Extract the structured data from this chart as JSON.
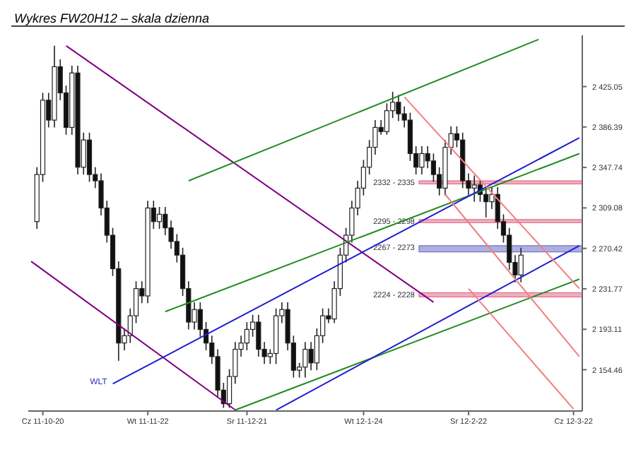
{
  "chart_data": {
    "type": "candlestick",
    "title": "Wykres FW20H12 – skala dzienna",
    "categories": [
      null,
      null,
      "Cz 11-10-20",
      null,
      null,
      null,
      null,
      null,
      null,
      null,
      null,
      null,
      null,
      null,
      null,
      null,
      null,
      null,
      null,
      null,
      "Wt 11-11-22",
      null,
      null,
      null,
      null,
      null,
      null,
      null,
      null,
      null,
      null,
      null,
      null,
      null,
      null,
      null,
      null,
      "Sr 11-12-21",
      null,
      null,
      null,
      null,
      null,
      null,
      null,
      null,
      null,
      null,
      null,
      null,
      null,
      null,
      null,
      null,
      null,
      null,
      null,
      "Wt 12-1-24",
      null,
      null,
      null,
      null,
      null,
      null,
      null,
      null,
      null,
      null,
      null,
      null,
      null,
      null,
      null,
      null,
      null,
      "Sr 12-2-22",
      null,
      null,
      null,
      null,
      null,
      null,
      null,
      null,
      null,
      null,
      null,
      null,
      null,
      null,
      null,
      null,
      null,
      "Cz 12-3-22",
      null
    ],
    "ohlc": [
      null,
      [
        2296,
        2348,
        2289,
        2341
      ],
      [
        2341,
        2419,
        2334,
        2412
      ],
      [
        2412,
        2419,
        2386,
        2393
      ],
      [
        2393,
        2464,
        2386,
        2444
      ],
      [
        2444,
        2451,
        2412,
        2419
      ],
      [
        2419,
        2426,
        2379,
        2386
      ],
      [
        2386,
        2445,
        2379,
        2438
      ],
      [
        2438,
        2445,
        2341,
        2348
      ],
      [
        2348,
        2381,
        2341,
        2374
      ],
      [
        2374,
        2381,
        2334,
        2341
      ],
      [
        2341,
        2348,
        2328,
        2335
      ],
      [
        2335,
        2342,
        2302,
        2309
      ],
      [
        2309,
        2316,
        2276,
        2283
      ],
      [
        2283,
        2290,
        2244,
        2251
      ],
      [
        2251,
        2258,
        2163,
        2180
      ],
      [
        2180,
        2194,
        2173,
        2187
      ],
      [
        2187,
        2213,
        2180,
        2206
      ],
      [
        2206,
        2239,
        2199,
        2232
      ],
      [
        2232,
        2239,
        2218,
        2225
      ],
      [
        2225,
        2316,
        2218,
        2309
      ],
      [
        2309,
        2316,
        2289,
        2296
      ],
      [
        2296,
        2310,
        2289,
        2303
      ],
      [
        2303,
        2310,
        2283,
        2290
      ],
      [
        2290,
        2297,
        2270,
        2277
      ],
      [
        2277,
        2284,
        2257,
        2264
      ],
      [
        2264,
        2271,
        2225,
        2232
      ],
      [
        2232,
        2239,
        2193,
        2200
      ],
      [
        2200,
        2219,
        2193,
        2212
      ],
      [
        2212,
        2219,
        2186,
        2193
      ],
      [
        2193,
        2200,
        2173,
        2180
      ],
      [
        2180,
        2187,
        2160,
        2167
      ],
      [
        2167,
        2174,
        2128,
        2135
      ],
      [
        2135,
        2142,
        2118,
        2122
      ],
      [
        2122,
        2155,
        2118,
        2148
      ],
      [
        2148,
        2181,
        2141,
        2174
      ],
      [
        2174,
        2187,
        2167,
        2180
      ],
      [
        2180,
        2200,
        2173,
        2193
      ],
      [
        2193,
        2207,
        2186,
        2200
      ],
      [
        2200,
        2207,
        2167,
        2174
      ],
      [
        2174,
        2181,
        2160,
        2167
      ],
      [
        2167,
        2174,
        2160,
        2170
      ],
      [
        2170,
        2213,
        2160,
        2206
      ],
      [
        2206,
        2219,
        2199,
        2212
      ],
      [
        2212,
        2219,
        2173,
        2180
      ],
      [
        2180,
        2187,
        2147,
        2154
      ],
      [
        2154,
        2161,
        2147,
        2157
      ],
      [
        2157,
        2181,
        2147,
        2174
      ],
      [
        2174,
        2181,
        2154,
        2161
      ],
      [
        2161,
        2194,
        2154,
        2187
      ],
      [
        2187,
        2213,
        2180,
        2206
      ],
      [
        2206,
        2213,
        2199,
        2203
      ],
      [
        2203,
        2239,
        2199,
        2232
      ],
      [
        2232,
        2271,
        2225,
        2264
      ],
      [
        2264,
        2290,
        2257,
        2283
      ],
      [
        2283,
        2316,
        2276,
        2309
      ],
      [
        2309,
        2335,
        2302,
        2328
      ],
      [
        2328,
        2355,
        2321,
        2348
      ],
      [
        2348,
        2374,
        2341,
        2367
      ],
      [
        2367,
        2393,
        2360,
        2386
      ],
      [
        2386,
        2393,
        2379,
        2382
      ],
      [
        2382,
        2409,
        2379,
        2402
      ],
      [
        2402,
        2420,
        2395,
        2410
      ],
      [
        2410,
        2417,
        2392,
        2399
      ],
      [
        2399,
        2406,
        2386,
        2393
      ],
      [
        2393,
        2400,
        2354,
        2361
      ],
      [
        2361,
        2368,
        2341,
        2348
      ],
      [
        2348,
        2368,
        2341,
        2361
      ],
      [
        2361,
        2368,
        2347,
        2354
      ],
      [
        2354,
        2361,
        2334,
        2341
      ],
      [
        2341,
        2348,
        2321,
        2328
      ],
      [
        2328,
        2374,
        2321,
        2367
      ],
      [
        2367,
        2387,
        2360,
        2380
      ],
      [
        2380,
        2387,
        2367,
        2374
      ],
      [
        2374,
        2381,
        2328,
        2335
      ],
      [
        2335,
        2342,
        2321,
        2328
      ],
      [
        2328,
        2340,
        2315,
        2331
      ],
      [
        2331,
        2335,
        2315,
        2322
      ],
      [
        2322,
        2329,
        2300,
        2315
      ],
      [
        2315,
        2329,
        2308,
        2322
      ],
      [
        2322,
        2329,
        2289,
        2296
      ],
      [
        2296,
        2303,
        2276,
        2283
      ],
      [
        2283,
        2290,
        2250,
        2257
      ],
      [
        2257,
        2264,
        2238,
        2245
      ],
      [
        2245,
        2271,
        2238,
        2264
      ],
      null,
      null,
      null,
      null,
      null,
      null,
      null,
      null,
      null,
      null
    ],
    "series": [
      {
        "type": "line",
        "color": "#800080",
        "values": [
          null,
          null,
          null,
          null,
          null,
          null,
          2464,
          null,
          null,
          null,
          null,
          null,
          null,
          null,
          null,
          null,
          null,
          null,
          null,
          null,
          null,
          null,
          null,
          null,
          null,
          null,
          null,
          null,
          null,
          null,
          null,
          null,
          null,
          null,
          null,
          null,
          null,
          null,
          null,
          null,
          null,
          null,
          null,
          null,
          null,
          null,
          null,
          null,
          null,
          null,
          null,
          null,
          null,
          null,
          null,
          null,
          null,
          null,
          null,
          null,
          null,
          null,
          null,
          null,
          null,
          null,
          null,
          null,
          null,
          2219,
          null,
          null,
          null,
          null,
          null,
          null,
          null,
          null,
          null,
          null,
          null,
          null,
          null,
          null,
          null,
          null,
          null,
          null,
          null,
          null,
          null,
          null,
          null,
          null,
          null
        ]
      },
      {
        "type": "line",
        "color": "#800080",
        "values": [
          2258,
          null,
          null,
          null,
          null,
          null,
          null,
          null,
          null,
          null,
          null,
          null,
          null,
          null,
          null,
          null,
          null,
          null,
          null,
          null,
          null,
          null,
          null,
          null,
          null,
          null,
          null,
          null,
          null,
          null,
          null,
          null,
          null,
          null,
          null,
          2116,
          null,
          null,
          null,
          null,
          null,
          null,
          null,
          null,
          null,
          null,
          null,
          null,
          null,
          null,
          null,
          null,
          null,
          null,
          null,
          null,
          null,
          null,
          null,
          null,
          null,
          null,
          null,
          null,
          null,
          null,
          null,
          null,
          null,
          null,
          null,
          null,
          null,
          null,
          null,
          null,
          null,
          null,
          null,
          null,
          null,
          null,
          null,
          null,
          null,
          null,
          null,
          null,
          null,
          null,
          null,
          null,
          null,
          null,
          null
        ]
      },
      {
        "type": "line",
        "color": "#228b22",
        "values": [
          null,
          null,
          null,
          null,
          null,
          null,
          null,
          null,
          null,
          null,
          null,
          null,
          null,
          null,
          null,
          null,
          null,
          null,
          null,
          null,
          null,
          null,
          null,
          null,
          null,
          null,
          null,
          2335,
          null,
          null,
          null,
          null,
          null,
          null,
          null,
          null,
          null,
          null,
          null,
          null,
          null,
          null,
          null,
          null,
          null,
          null,
          null,
          null,
          null,
          null,
          null,
          null,
          null,
          null,
          null,
          null,
          null,
          null,
          null,
          null,
          null,
          null,
          null,
          null,
          null,
          null,
          null,
          null,
          null,
          null,
          null,
          null,
          null,
          null,
          null,
          null,
          null,
          null,
          null,
          null,
          null,
          null,
          null,
          null,
          null,
          null,
          null,
          2470,
          null,
          null,
          null,
          null,
          null,
          null,
          null
        ]
      },
      {
        "type": "line",
        "color": "#228b22",
        "values": [
          null,
          null,
          null,
          null,
          null,
          null,
          null,
          null,
          null,
          null,
          null,
          null,
          null,
          null,
          null,
          null,
          null,
          null,
          null,
          null,
          null,
          null,
          null,
          2210,
          null,
          null,
          null,
          null,
          null,
          null,
          null,
          null,
          null,
          null,
          null,
          null,
          null,
          null,
          null,
          null,
          null,
          null,
          null,
          null,
          null,
          null,
          null,
          null,
          null,
          null,
          null,
          null,
          null,
          null,
          null,
          null,
          null,
          null,
          null,
          null,
          null,
          null,
          null,
          null,
          null,
          null,
          null,
          null,
          null,
          null,
          null,
          null,
          null,
          null,
          null,
          null,
          null,
          null,
          null,
          null,
          null,
          null,
          null,
          null,
          null,
          null,
          null,
          null,
          null,
          null,
          null,
          null,
          null,
          null,
          2361
        ]
      },
      {
        "type": "line",
        "color": "#228b22",
        "values": [
          null,
          null,
          null,
          null,
          null,
          null,
          null,
          null,
          null,
          null,
          null,
          null,
          null,
          null,
          null,
          null,
          null,
          null,
          null,
          null,
          null,
          null,
          null,
          null,
          null,
          null,
          null,
          null,
          null,
          null,
          null,
          null,
          null,
          null,
          null,
          2116,
          null,
          null,
          null,
          null,
          null,
          null,
          null,
          null,
          null,
          null,
          null,
          null,
          null,
          null,
          null,
          null,
          null,
          null,
          null,
          null,
          null,
          null,
          null,
          null,
          null,
          null,
          null,
          null,
          null,
          null,
          null,
          null,
          null,
          null,
          null,
          null,
          null,
          null,
          null,
          null,
          null,
          null,
          null,
          null,
          null,
          null,
          null,
          null,
          null,
          null,
          null,
          null,
          null,
          null,
          null,
          null,
          null,
          null,
          2241
        ]
      },
      {
        "type": "line",
        "color": "#1f1fd0",
        "values": [
          null,
          null,
          null,
          null,
          null,
          null,
          null,
          null,
          null,
          null,
          null,
          null,
          null,
          null,
          2141,
          null,
          null,
          null,
          null,
          null,
          null,
          null,
          null,
          null,
          null,
          null,
          null,
          null,
          null,
          null,
          null,
          null,
          null,
          null,
          null,
          null,
          null,
          null,
          null,
          null,
          null,
          null,
          null,
          null,
          null,
          null,
          null,
          null,
          null,
          null,
          null,
          null,
          null,
          null,
          null,
          null,
          null,
          null,
          null,
          null,
          null,
          null,
          null,
          null,
          null,
          null,
          null,
          null,
          null,
          null,
          null,
          null,
          null,
          null,
          null,
          null,
          null,
          null,
          null,
          null,
          null,
          null,
          null,
          null,
          null,
          null,
          null,
          null,
          null,
          null,
          null,
          null,
          null,
          null,
          2376
        ]
      },
      {
        "type": "line",
        "color": "#1f1fd0",
        "values": [
          null,
          null,
          null,
          null,
          null,
          null,
          null,
          null,
          null,
          null,
          null,
          null,
          null,
          null,
          null,
          null,
          null,
          null,
          null,
          null,
          null,
          null,
          null,
          null,
          null,
          null,
          null,
          null,
          null,
          null,
          null,
          null,
          null,
          null,
          null,
          null,
          null,
          null,
          null,
          null,
          null,
          null,
          2116,
          null,
          null,
          null,
          null,
          null,
          null,
          null,
          null,
          null,
          null,
          null,
          null,
          null,
          null,
          null,
          null,
          null,
          null,
          null,
          null,
          null,
          null,
          null,
          null,
          null,
          null,
          null,
          null,
          null,
          null,
          null,
          null,
          null,
          null,
          null,
          null,
          null,
          null,
          null,
          null,
          null,
          null,
          null,
          null,
          null,
          null,
          null,
          null,
          null,
          null,
          null,
          2273
        ]
      },
      {
        "type": "line",
        "color": "#f08080",
        "values": [
          null,
          null,
          null,
          null,
          null,
          null,
          null,
          null,
          null,
          null,
          null,
          null,
          null,
          null,
          null,
          null,
          null,
          null,
          null,
          null,
          null,
          null,
          null,
          null,
          null,
          null,
          null,
          null,
          null,
          null,
          null,
          null,
          null,
          null,
          null,
          null,
          null,
          null,
          null,
          null,
          null,
          null,
          null,
          null,
          null,
          null,
          null,
          null,
          null,
          null,
          null,
          null,
          null,
          null,
          null,
          null,
          null,
          null,
          null,
          null,
          null,
          null,
          null,
          null,
          2415,
          null,
          null,
          null,
          null,
          null,
          null,
          null,
          null,
          null,
          null,
          null,
          null,
          null,
          null,
          null,
          null,
          null,
          null,
          null,
          null,
          null,
          null,
          null,
          null,
          null,
          null,
          null,
          null,
          null,
          2232
        ]
      },
      {
        "type": "line",
        "color": "#f08080",
        "values": [
          null,
          null,
          null,
          null,
          null,
          null,
          null,
          null,
          null,
          null,
          null,
          null,
          null,
          null,
          null,
          null,
          null,
          null,
          null,
          null,
          null,
          null,
          null,
          null,
          null,
          null,
          null,
          null,
          null,
          null,
          null,
          null,
          null,
          null,
          null,
          null,
          null,
          null,
          null,
          null,
          null,
          null,
          null,
          null,
          null,
          null,
          null,
          null,
          null,
          null,
          null,
          null,
          null,
          null,
          null,
          null,
          null,
          null,
          null,
          null,
          null,
          null,
          null,
          null,
          null,
          null,
          null,
          null,
          null,
          null,
          null,
          2322,
          null,
          null,
          null,
          null,
          null,
          null,
          null,
          null,
          null,
          null,
          null,
          null,
          null,
          null,
          null,
          null,
          null,
          null,
          null,
          null,
          null,
          null,
          2167
        ]
      },
      {
        "type": "line",
        "color": "#f08080",
        "values": [
          null,
          null,
          null,
          null,
          null,
          null,
          null,
          null,
          null,
          null,
          null,
          null,
          null,
          null,
          null,
          null,
          null,
          null,
          null,
          null,
          null,
          null,
          null,
          null,
          null,
          null,
          null,
          null,
          null,
          null,
          null,
          null,
          null,
          null,
          null,
          null,
          null,
          null,
          null,
          null,
          null,
          null,
          null,
          null,
          null,
          null,
          null,
          null,
          null,
          null,
          null,
          null,
          null,
          null,
          null,
          null,
          null,
          null,
          null,
          null,
          null,
          null,
          null,
          null,
          null,
          null,
          null,
          null,
          null,
          null,
          null,
          null,
          null,
          null,
          null,
          2232,
          null,
          null,
          null,
          null,
          null,
          null,
          null,
          null,
          null,
          null,
          null,
          null,
          null,
          null,
          null,
          null,
          null,
          2117,
          null
        ]
      }
    ],
    "bands": [
      {
        "axis": "y",
        "from": 2332,
        "to": 2335,
        "label": "2332 - 2335",
        "color": "#e06080"
      },
      {
        "axis": "y",
        "from": 2295,
        "to": 2298,
        "label": "2295 - 2298",
        "color": "#e06080"
      },
      {
        "axis": "y",
        "from": 2267,
        "to": 2273,
        "label": "2267 - 2273",
        "color": "#6060c0"
      },
      {
        "axis": "y",
        "from": 2224,
        "to": 2228,
        "label": "2224 - 2228",
        "color": "#e06080"
      }
    ],
    "annotations": [
      "WLT"
    ],
    "ylim": [
      2115,
      2474
    ],
    "yticks": [
      {
        "value": 2154.46,
        "label": "2 154.46"
      },
      {
        "value": 2193.11,
        "label": "2 193.11"
      },
      {
        "value": 2231.77,
        "label": "2 231.77"
      },
      {
        "value": 2270.42,
        "label": "2 270.42"
      },
      {
        "value": 2309.08,
        "label": "2 309.08"
      },
      {
        "value": 2347.74,
        "label": "2 347.74"
      },
      {
        "value": 2386.39,
        "label": "2 386.39"
      },
      {
        "value": 2425.05,
        "label": "2 425.05"
      }
    ]
  }
}
